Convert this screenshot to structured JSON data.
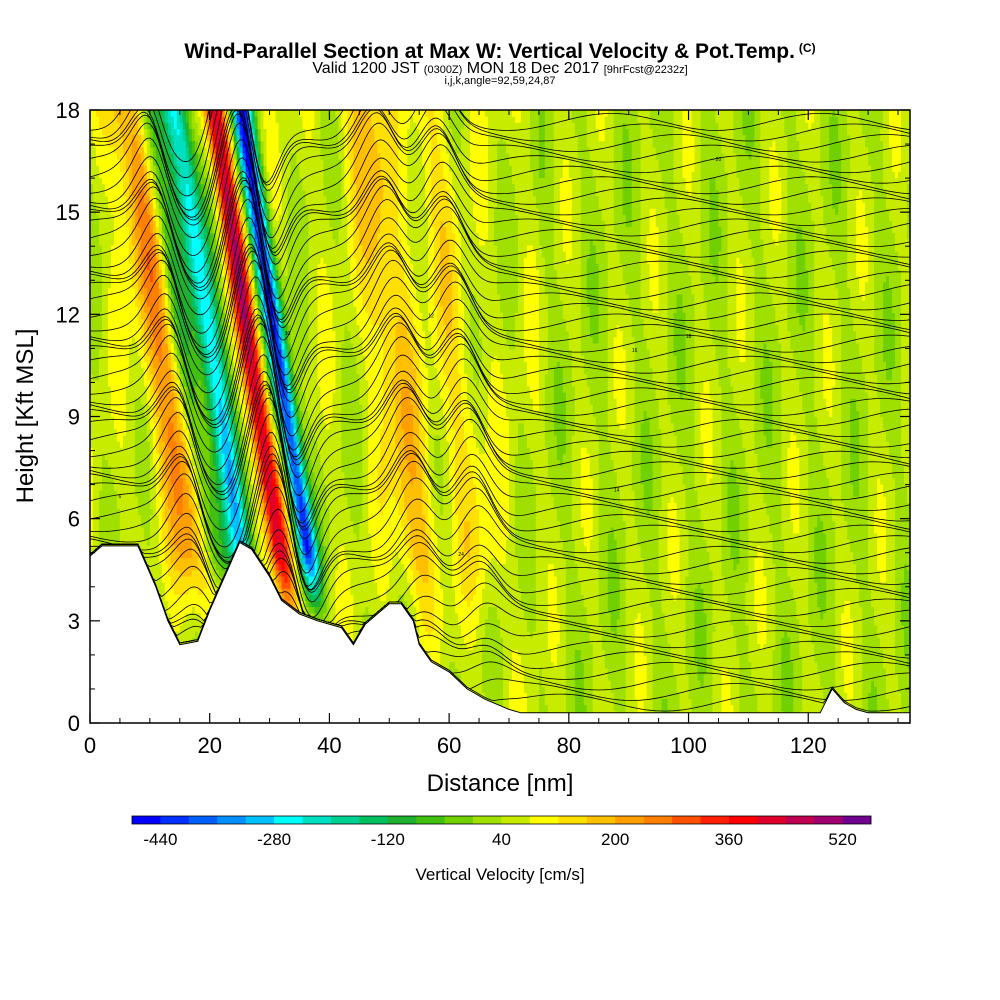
{
  "header": {
    "title": "Wind-Parallel Section at Max W: Vertical Velocity & Pot.Temp.",
    "copyright": "(C)",
    "valid_prefix": "Valid 1200 JST",
    "utc": "(0300Z)",
    "valid_date": "MON 18 Dec 2017",
    "forecast": "[9hrFcst@2232z]",
    "indices": "i,j,k,angle=92,59,24,87"
  },
  "chart_data": {
    "type": "heatmap",
    "title": "Wind-Parallel Section at Max W: Vertical Velocity & Pot.Temp.",
    "xlabel": "Distance [nm]",
    "ylabel": "Height [Kft MSL]",
    "xlim": [
      0,
      137
    ],
    "ylim": [
      0,
      18
    ],
    "x_ticks": [
      "0",
      "20",
      "40",
      "60",
      "80",
      "100",
      "120"
    ],
    "y_ticks": [
      "0",
      "3",
      "6",
      "9",
      "12",
      "15",
      "18"
    ],
    "colorbar": {
      "label": "Vertical Velocity [cm/s]",
      "tick_labels": [
        "-440",
        "-280",
        "-120",
        "40",
        "200",
        "360",
        "520"
      ],
      "min": -480,
      "max": 560,
      "colors": [
        "#0000ff",
        "#0030ff",
        "#0060ff",
        "#0090ff",
        "#00c0ff",
        "#00ffff",
        "#00e0c0",
        "#00d090",
        "#00c060",
        "#20b030",
        "#40c010",
        "#70d000",
        "#a0e000",
        "#c8ec00",
        "#ffff00",
        "#ffe000",
        "#ffc000",
        "#ffa000",
        "#ff8000",
        "#ff5000",
        "#ff2000",
        "#ff0000",
        "#e0002a",
        "#c00050",
        "#a00070",
        "#700090"
      ]
    },
    "updrafts": [
      {
        "x": 16.5,
        "w": 240
      },
      {
        "x": 31,
        "w": 440
      },
      {
        "x": 54,
        "w": 180
      },
      {
        "x": 64,
        "w": 120
      }
    ],
    "downdrafts": [
      {
        "x": 24.5,
        "w": -280
      },
      {
        "x": 35.5,
        "w": -440
      },
      {
        "x": 20,
        "w": -120
      }
    ],
    "terrain_top_kft": [
      [
        0,
        4.9
      ],
      [
        2,
        5.2
      ],
      [
        8,
        5.2
      ],
      [
        11,
        4.0
      ],
      [
        13,
        3.0
      ],
      [
        15,
        2.3
      ],
      [
        18,
        2.4
      ],
      [
        20,
        3.3
      ],
      [
        23,
        4.5
      ],
      [
        25,
        5.3
      ],
      [
        27,
        5.1
      ],
      [
        30,
        4.3
      ],
      [
        32,
        3.6
      ],
      [
        35,
        3.2
      ],
      [
        38,
        3.0
      ],
      [
        42,
        2.8
      ],
      [
        44,
        2.3
      ],
      [
        46,
        2.9
      ],
      [
        48,
        3.2
      ],
      [
        50,
        3.5
      ],
      [
        52,
        3.5
      ],
      [
        54,
        3.0
      ],
      [
        55,
        2.3
      ],
      [
        57,
        1.8
      ],
      [
        60,
        1.5
      ],
      [
        63,
        1.0
      ],
      [
        66,
        0.7
      ],
      [
        70,
        0.4
      ],
      [
        72,
        0.3
      ],
      [
        122,
        0.3
      ],
      [
        124,
        1.0
      ],
      [
        126,
        0.6
      ],
      [
        128,
        0.4
      ],
      [
        130,
        0.3
      ],
      [
        137,
        0.3
      ]
    ],
    "theta_contour_labels": [
      "6",
      "8",
      "10",
      "12",
      "14",
      "16",
      "18",
      "20",
      "22",
      "24",
      "26",
      "28",
      "30",
      "32",
      "34"
    ]
  }
}
